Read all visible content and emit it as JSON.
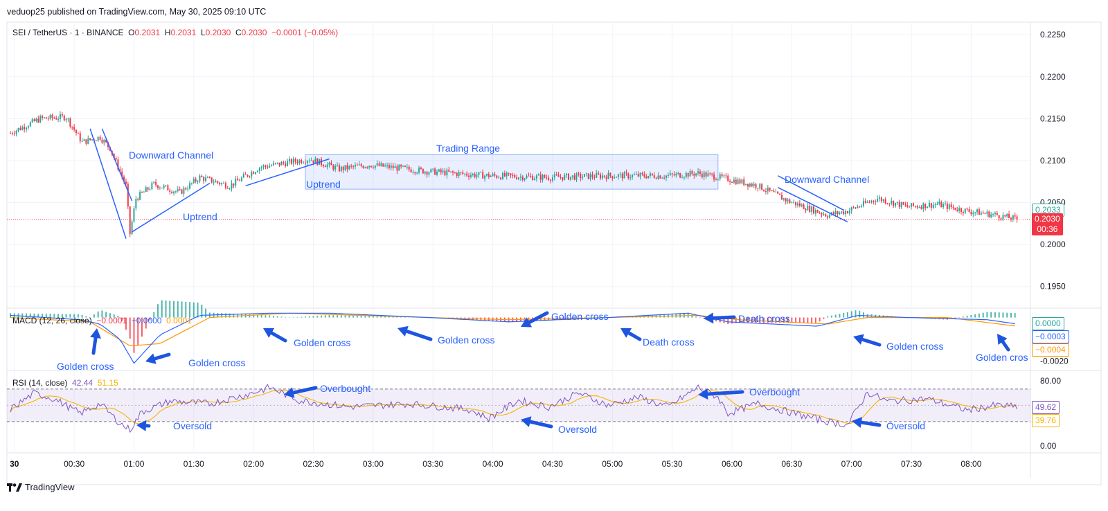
{
  "publish_line": "veduop25 published on TradingView.com, May 30, 2025 09:10 UTC",
  "ohlc": {
    "symbol": "SEI / TetherUS · 1 · BINANCE",
    "o_label": "O",
    "o": "0.2031",
    "h_label": "H",
    "h": "0.2031",
    "l_label": "L",
    "l": "0.2030",
    "c_label": "C",
    "c": "0.2030",
    "change": "−0.0001 (−0.05%)"
  },
  "macd_legend": {
    "name": "MACD (12, 26, close)",
    "v1": "−0.0001",
    "v2": "−0.0000",
    "v3": "0.0001"
  },
  "rsi_legend": {
    "name": "RSI (14, close)",
    "v1": "42.44",
    "v2": "51.15"
  },
  "footer": {
    "brand": "TradingView"
  },
  "colors": {
    "up": "#26a69a",
    "down": "#f23645",
    "blue": "#2962ff",
    "orange": "#ff9800",
    "purple": "#7e57c2",
    "rsi_ma": "#f7b500"
  },
  "chart_data": {
    "type": "candlestick",
    "x_ticks": [
      "30",
      "00:30",
      "01:00",
      "01:30",
      "02:00",
      "02:30",
      "03:00",
      "03:30",
      "04:00",
      "04:30",
      "05:00",
      "05:30",
      "06:00",
      "06:30",
      "07:00",
      "07:30",
      "08:00"
    ],
    "price_ticks": [
      "0.2250",
      "0.2200",
      "0.2150",
      "0.2100",
      "0.2050",
      "0.2000",
      "0.1950"
    ],
    "price_range": [
      0.1925,
      0.2265
    ],
    "price_keypoints": [
      {
        "t": 0,
        "p": 0.2133
      },
      {
        "t": 15,
        "p": 0.215
      },
      {
        "t": 28,
        "p": 0.2152
      },
      {
        "t": 36,
        "p": 0.2122
      },
      {
        "t": 45,
        "p": 0.2128
      },
      {
        "t": 50,
        "p": 0.2115
      },
      {
        "t": 58,
        "p": 0.207
      },
      {
        "t": 60,
        "p": 0.2013
      },
      {
        "t": 63,
        "p": 0.2055
      },
      {
        "t": 72,
        "p": 0.2072
      },
      {
        "t": 85,
        "p": 0.2062
      },
      {
        "t": 95,
        "p": 0.208
      },
      {
        "t": 110,
        "p": 0.207
      },
      {
        "t": 125,
        "p": 0.2092
      },
      {
        "t": 150,
        "p": 0.2102
      },
      {
        "t": 165,
        "p": 0.209
      },
      {
        "t": 180,
        "p": 0.2095
      },
      {
        "t": 210,
        "p": 0.2087
      },
      {
        "t": 240,
        "p": 0.2082
      },
      {
        "t": 270,
        "p": 0.208
      },
      {
        "t": 300,
        "p": 0.2082
      },
      {
        "t": 330,
        "p": 0.2082
      },
      {
        "t": 345,
        "p": 0.2085
      },
      {
        "t": 360,
        "p": 0.2078
      },
      {
        "t": 375,
        "p": 0.207
      },
      {
        "t": 390,
        "p": 0.2052
      },
      {
        "t": 410,
        "p": 0.2035
      },
      {
        "t": 420,
        "p": 0.204
      },
      {
        "t": 435,
        "p": 0.2055
      },
      {
        "t": 450,
        "p": 0.2045
      },
      {
        "t": 465,
        "p": 0.2048
      },
      {
        "t": 480,
        "p": 0.204
      },
      {
        "t": 495,
        "p": 0.2035
      },
      {
        "t": 505,
        "p": 0.203
      }
    ],
    "current_price": "0.2030",
    "current_countdown": "00:36",
    "price_tag_above": "0.2033",
    "macd": {
      "ticks": [
        "-0.0020"
      ],
      "value_tags": [
        "0.0000",
        "−0.0003",
        "−0.0004"
      ],
      "macd_keypoints": [
        {
          "t": 0,
          "v": 0.0001
        },
        {
          "t": 35,
          "v": -0.0001
        },
        {
          "t": 45,
          "v": -0.0003
        },
        {
          "t": 55,
          "v": -0.001
        },
        {
          "t": 62,
          "v": -0.0021
        },
        {
          "t": 75,
          "v": -0.0008
        },
        {
          "t": 95,
          "v": 0.0001
        },
        {
          "t": 130,
          "v": 0.0002
        },
        {
          "t": 160,
          "v": 0.0002
        },
        {
          "t": 210,
          "v": 0.0
        },
        {
          "t": 250,
          "v": -0.0002
        },
        {
          "t": 300,
          "v": 0.0
        },
        {
          "t": 340,
          "v": 0.0002
        },
        {
          "t": 360,
          "v": -0.0002
        },
        {
          "t": 405,
          "v": -0.0004
        },
        {
          "t": 425,
          "v": 0.0001
        },
        {
          "t": 450,
          "v": 0.0
        },
        {
          "t": 490,
          "v": -0.0001
        },
        {
          "t": 505,
          "v": -0.0003
        }
      ],
      "signal_keypoints": [
        {
          "t": 0,
          "v": 0.0
        },
        {
          "t": 40,
          "v": -0.0002
        },
        {
          "t": 60,
          "v": -0.0013
        },
        {
          "t": 75,
          "v": -0.0012
        },
        {
          "t": 100,
          "v": 0.0
        },
        {
          "t": 140,
          "v": 0.0002
        },
        {
          "t": 210,
          "v": 0.0
        },
        {
          "t": 250,
          "v": -0.0001
        },
        {
          "t": 300,
          "v": 0.0
        },
        {
          "t": 345,
          "v": 0.0001
        },
        {
          "t": 365,
          "v": -0.0001
        },
        {
          "t": 410,
          "v": -0.0003
        },
        {
          "t": 430,
          "v": 0.0
        },
        {
          "t": 470,
          "v": 0.0
        },
        {
          "t": 505,
          "v": -0.0004
        }
      ]
    },
    "rsi": {
      "ticks": [
        "80.00",
        "0.00"
      ],
      "value_tags": [
        "49.62",
        "39.76"
      ],
      "upper_band": 70,
      "lower_band": 30,
      "keypoints": [
        {
          "t": 0,
          "v": 45
        },
        {
          "t": 12,
          "v": 65
        },
        {
          "t": 22,
          "v": 58
        },
        {
          "t": 35,
          "v": 40
        },
        {
          "t": 45,
          "v": 52
        },
        {
          "t": 55,
          "v": 28
        },
        {
          "t": 60,
          "v": 20
        },
        {
          "t": 66,
          "v": 42
        },
        {
          "t": 80,
          "v": 55
        },
        {
          "t": 100,
          "v": 52
        },
        {
          "t": 120,
          "v": 64
        },
        {
          "t": 130,
          "v": 72
        },
        {
          "t": 145,
          "v": 56
        },
        {
          "t": 170,
          "v": 48
        },
        {
          "t": 200,
          "v": 52
        },
        {
          "t": 230,
          "v": 45
        },
        {
          "t": 240,
          "v": 34
        },
        {
          "t": 255,
          "v": 56
        },
        {
          "t": 270,
          "v": 48
        },
        {
          "t": 285,
          "v": 65
        },
        {
          "t": 300,
          "v": 50
        },
        {
          "t": 315,
          "v": 60
        },
        {
          "t": 330,
          "v": 48
        },
        {
          "t": 345,
          "v": 72
        },
        {
          "t": 355,
          "v": 60
        },
        {
          "t": 360,
          "v": 40
        },
        {
          "t": 375,
          "v": 52
        },
        {
          "t": 390,
          "v": 42
        },
        {
          "t": 410,
          "v": 30
        },
        {
          "t": 420,
          "v": 26
        },
        {
          "t": 430,
          "v": 66
        },
        {
          "t": 440,
          "v": 55
        },
        {
          "t": 460,
          "v": 58
        },
        {
          "t": 480,
          "v": 44
        },
        {
          "t": 495,
          "v": 50
        },
        {
          "t": 505,
          "v": 48
        }
      ]
    },
    "annotations": [
      {
        "text": "Downward Channel"
      },
      {
        "text": "Uptrend"
      },
      {
        "text": "Trading Range"
      },
      {
        "text": "Uptrend"
      },
      {
        "text": "Downward Channel"
      },
      {
        "text": "Golden cross"
      },
      {
        "text": "Golden cross"
      },
      {
        "text": "Golden cross"
      },
      {
        "text": "Golden cross"
      },
      {
        "text": "Golden cross"
      },
      {
        "text": "Death cross"
      },
      {
        "text": "Death cross"
      },
      {
        "text": "Golden cross"
      },
      {
        "text": "Golden cros"
      },
      {
        "text": "Oversold"
      },
      {
        "text": "Overbought"
      },
      {
        "text": "Oversold"
      },
      {
        "text": "Overbought"
      },
      {
        "text": "Oversold"
      }
    ]
  }
}
